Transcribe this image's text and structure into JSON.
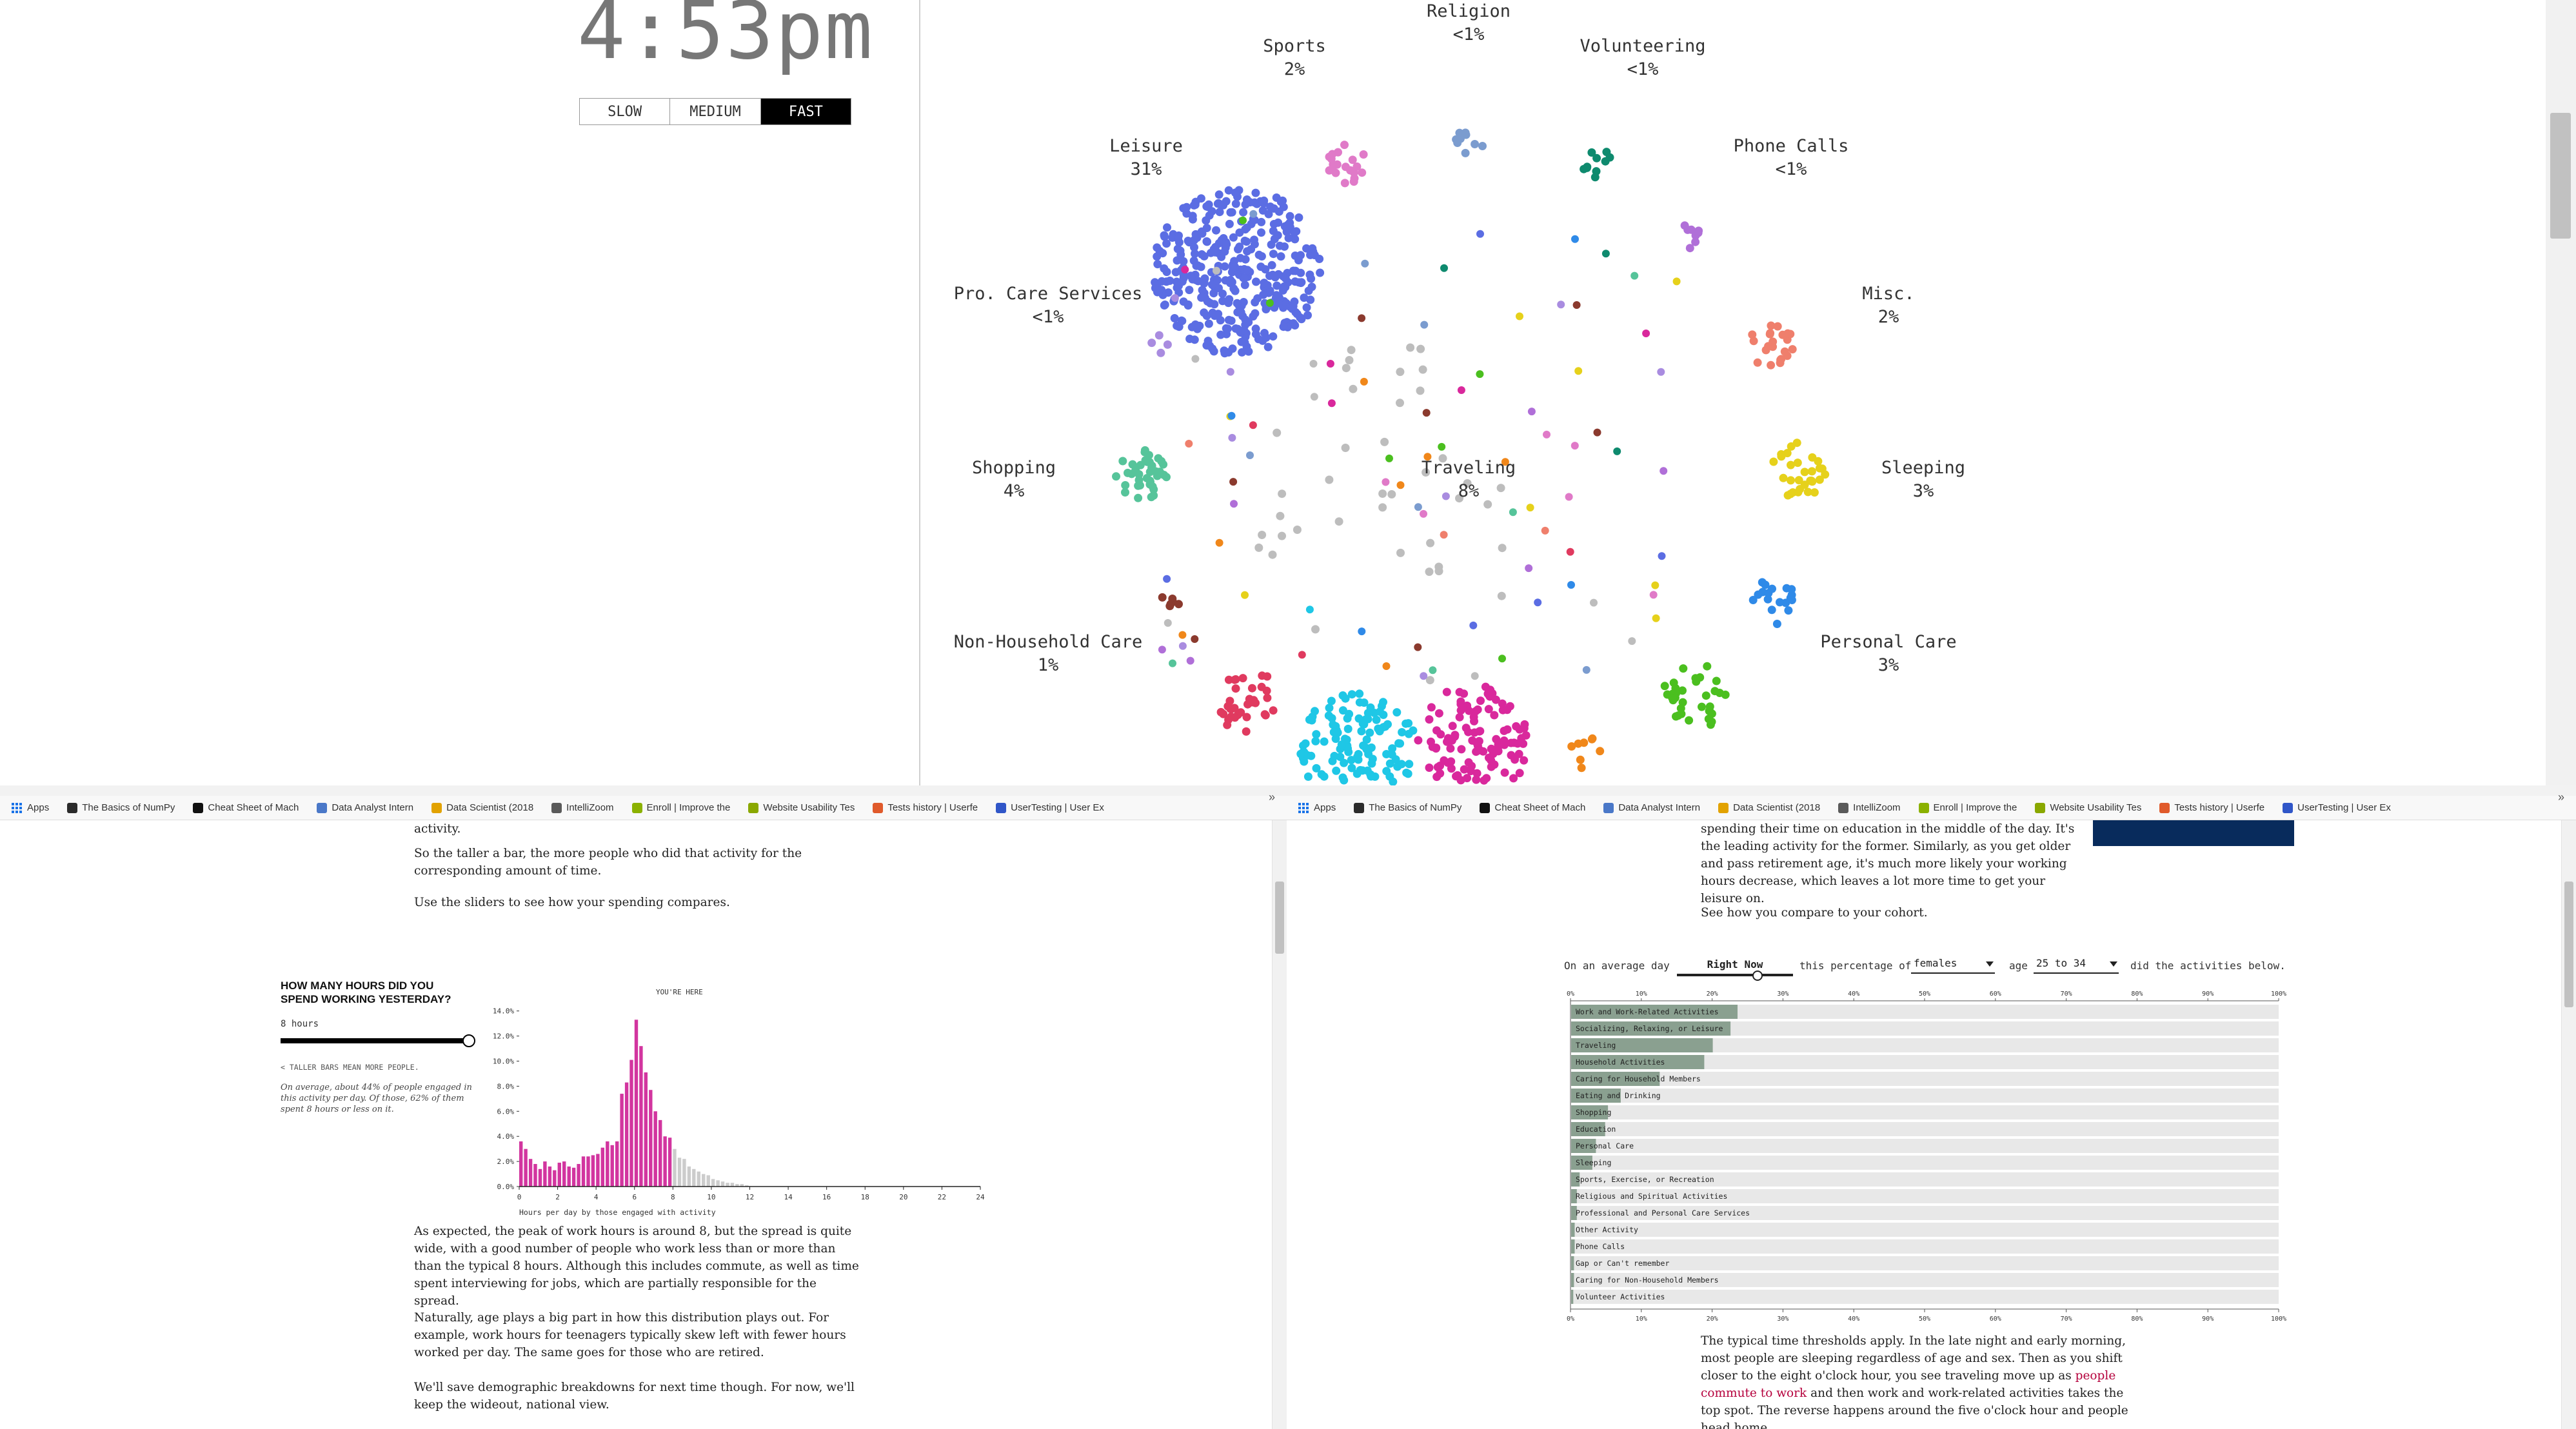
{
  "clock": {
    "time": "4:53pm"
  },
  "speed": {
    "options": [
      "SLOW",
      "MEDIUM",
      "FAST"
    ],
    "active": "FAST"
  },
  "groups": [
    {
      "name": "Religion",
      "pct": "<1%",
      "lx": 2277,
      "ly": 0,
      "cx": 2277,
      "cy": 215,
      "color": "#7b9ccf",
      "n": 9,
      "r": 26
    },
    {
      "name": "Sports",
      "pct": "2%",
      "lx": 2007,
      "ly": 54,
      "cx": 2083,
      "cy": 252,
      "color": "#e07ac8",
      "n": 20,
      "r": 34
    },
    {
      "name": "Volunteering",
      "pct": "<1%",
      "lx": 2547,
      "ly": 54,
      "cx": 2476,
      "cy": 254,
      "color": "#0e8a6e",
      "n": 10,
      "r": 24
    },
    {
      "name": "Leisure",
      "pct": "31%",
      "lx": 1777,
      "ly": 209,
      "cx": 1918,
      "cy": 420,
      "color": "#5b6de3",
      "n": 380,
      "r": 130
    },
    {
      "name": "Phone Calls",
      "pct": "<1%",
      "lx": 2777,
      "ly": 209,
      "cx": 2618,
      "cy": 360,
      "color": "#b06fd8",
      "n": 8,
      "r": 26
    },
    {
      "name": "Pro. Care Services",
      "pct": "<1%",
      "lx": 1625,
      "ly": 438,
      "cx": 1800,
      "cy": 535,
      "color": "#a98ce0",
      "n": 4,
      "r": 16
    },
    {
      "name": "Misc.",
      "pct": "2%",
      "lx": 2928,
      "ly": 438,
      "cx": 2745,
      "cy": 535,
      "color": "#ef7f6c",
      "n": 22,
      "r": 36
    },
    {
      "name": "Shopping",
      "pct": "4%",
      "lx": 1572,
      "ly": 708,
      "cx": 1770,
      "cy": 735,
      "color": "#56c49a",
      "n": 40,
      "r": 42
    },
    {
      "name": "Traveling",
      "pct": "8%",
      "lx": 2277,
      "ly": 708,
      "cx": 2150,
      "cy": 800,
      "color": "#bdbdbd",
      "n": 40,
      "r": 230
    },
    {
      "name": "Sleeping",
      "pct": "3%",
      "lx": 2982,
      "ly": 708,
      "cx": 2790,
      "cy": 730,
      "color": "#e6d11b",
      "n": 30,
      "r": 44
    },
    {
      "name": "Non-Household Care",
      "pct": "1%",
      "lx": 1625,
      "ly": 978,
      "cx": 1810,
      "cy": 930,
      "color": "#8b3a2e",
      "n": 6,
      "r": 20
    },
    {
      "name": "Personal Care",
      "pct": "3%",
      "lx": 2928,
      "ly": 978,
      "cx": 2740,
      "cy": 930,
      "color": "#2f8ae8",
      "n": 18,
      "r": 42
    },
    {
      "name": "",
      "pct": "",
      "lx": 0,
      "ly": 0,
      "cx": 1935,
      "cy": 1085,
      "color": "#e03a5f",
      "n": 34,
      "r": 52
    },
    {
      "name": "",
      "pct": "",
      "lx": 0,
      "ly": 0,
      "cx": 2625,
      "cy": 1080,
      "color": "#4bbf1f",
      "n": 34,
      "r": 52
    },
    {
      "name": "",
      "pct": "",
      "lx": 0,
      "ly": 0,
      "cx": 2105,
      "cy": 1170,
      "color": "#1fc7e6",
      "n": 150,
      "r": 95
    },
    {
      "name": "",
      "pct": "",
      "lx": 0,
      "ly": 0,
      "cx": 2285,
      "cy": 1150,
      "color": "#d9289c",
      "n": 120,
      "r": 88
    },
    {
      "name": "",
      "pct": "",
      "lx": 0,
      "ly": 0,
      "cx": 2465,
      "cy": 1170,
      "color": "#f0871a",
      "n": 8,
      "r": 34
    }
  ],
  "left_tab": {
    "bookmarks": [
      "Apps",
      "The Basics of NumPy",
      "Cheat Sheet of Mach",
      "Data Analyst Intern",
      "Data Scientist (2018",
      "IntelliZoom",
      "Enroll | Improve the",
      "Website Usability Tes",
      "Tests history | Userfe",
      "UserTesting | User Ex"
    ],
    "para_top": "activity.",
    "para1": "So the taller a bar, the more people who did that activity for the corresponding amount of time.",
    "para2": "Use the sliders to see how your spending compares.",
    "hist": {
      "question": "How many hours did you spend working yesterday?",
      "value_label": "8 hours",
      "slider_value": 8,
      "slider_max": 24,
      "note": "< TALLER BARS MEAN MORE PEOPLE.",
      "caption": "On average, about 44% of people engaged in this activity per day. Of those, 62% of them spent 8 hours or less on it.",
      "marker_label": "YOU'RE HERE"
    },
    "para3": "As expected, the peak of work hours is around 8, but the spread is quite wide, with a good number of people who work less than or more than than the typical 8 hours. Although this includes commute, as well as time spent interviewing for jobs, which are partially responsible for the spread.",
    "para4": "Naturally, age plays a big part in how this distribution plays out. For example, work hours for teenagers typically skew left with fewer hours worked per day. The same goes for those who are retired.",
    "para5": "We'll save demographic breakdowns for next time though. For now, we'll keep the wideout, national view."
  },
  "right_tab": {
    "bookmarks": [
      "Apps",
      "The Basics of NumPy",
      "Cheat Sheet of Mach",
      "Data Analyst Intern",
      "Data Scientist (2018",
      "IntelliZoom",
      "Enroll | Improve the",
      "Website Usability Tes",
      "Tests history | Userfe",
      "UserTesting | User Ex"
    ],
    "para_top": "spending their time on education in the middle of the day. It's the leading activity for the former. Similarly, as you get older and pass retirement age, it's much more likely your working hours decrease, which leaves a lot more time to get your leisure on.",
    "para_compare": "See how you compare to your cohort.",
    "cohort": {
      "t1": "On an average day",
      "time": "Right Now",
      "t2": "this percentage of",
      "sex": "females",
      "t3": "age",
      "age": "25 to 34",
      "t4": "did the activities below."
    },
    "para_bottom_a": "The typical time thresholds apply. In the late night and early morning, most people are sleeping regardless of age and sex. Then as you shift closer to the eight o'clock hour, you see traveling move up as ",
    "para_bottom_link": "people commute to work",
    "para_bottom_b": " and then work and work-related activities takes the top spot. The reverse happens around the five o'clock hour and people head home."
  },
  "chart_data": [
    {
      "type": "bar",
      "title": "",
      "xlabel": "Hours per day by those engaged with activity",
      "ylabel": "",
      "x_ticks": [
        0,
        2,
        4,
        6,
        8,
        10,
        12,
        14,
        16,
        18,
        20,
        22,
        24
      ],
      "y_ticks": [
        "0.0%",
        "2.0%",
        "4.0%",
        "6.0%",
        "8.0%",
        "10.0%",
        "12.0%",
        "14.0%"
      ],
      "ylim": [
        0,
        14.5
      ],
      "xlim": [
        0,
        24
      ],
      "bin_width": 0.25,
      "highlight_upto": 8,
      "colors": {
        "highlight": "#d2359f",
        "rest": "#cccccc"
      },
      "values": [
        3.6,
        3.0,
        2.2,
        1.8,
        1.4,
        2.0,
        1.6,
        1.3,
        1.9,
        2.0,
        1.6,
        1.5,
        1.8,
        2.4,
        2.4,
        2.5,
        2.6,
        3.1,
        3.6,
        3.3,
        3.6,
        7.4,
        8.3,
        10.1,
        13.3,
        11.2,
        9.1,
        7.7,
        6.0,
        5.3,
        4.0,
        3.9,
        3.0,
        2.3,
        2.2,
        1.6,
        1.4,
        1.2,
        1.0,
        0.9,
        0.6,
        0.5,
        0.4,
        0.3,
        0.3,
        0.2,
        0.2,
        0.1
      ]
    },
    {
      "type": "bar",
      "title": "",
      "orientation": "horizontal",
      "x_ticks": [
        "0%",
        "10%",
        "20%",
        "30%",
        "40%",
        "50%",
        "60%",
        "70%",
        "80%",
        "90%",
        "100%"
      ],
      "xlim": [
        0,
        100
      ],
      "categories": [
        "Work and Work-Related Activities",
        "Socializing, Relaxing, or Leisure",
        "Traveling",
        "Household Activities",
        "Caring for Household Members",
        "Eating and Drinking",
        "Shopping",
        "Education",
        "Personal Care",
        "Sleeping",
        "Sports, Exercise, or Recreation",
        "Religious and Spiritual Activities",
        "Professional and Personal Care Services",
        "Other Activity",
        "Phone Calls",
        "Gap or Can't remember",
        "Caring for Non-Household Members",
        "Volunteer Activities"
      ],
      "values": [
        23.5,
        22.5,
        20,
        18.8,
        12.5,
        7,
        5.2,
        4.8,
        3.5,
        3,
        1.2,
        0.8,
        0.8,
        0.5,
        0.5,
        0.4,
        0.4,
        0.3
      ],
      "colors": {
        "bar": "#8aa090",
        "track": "#e8e8e8"
      }
    }
  ]
}
